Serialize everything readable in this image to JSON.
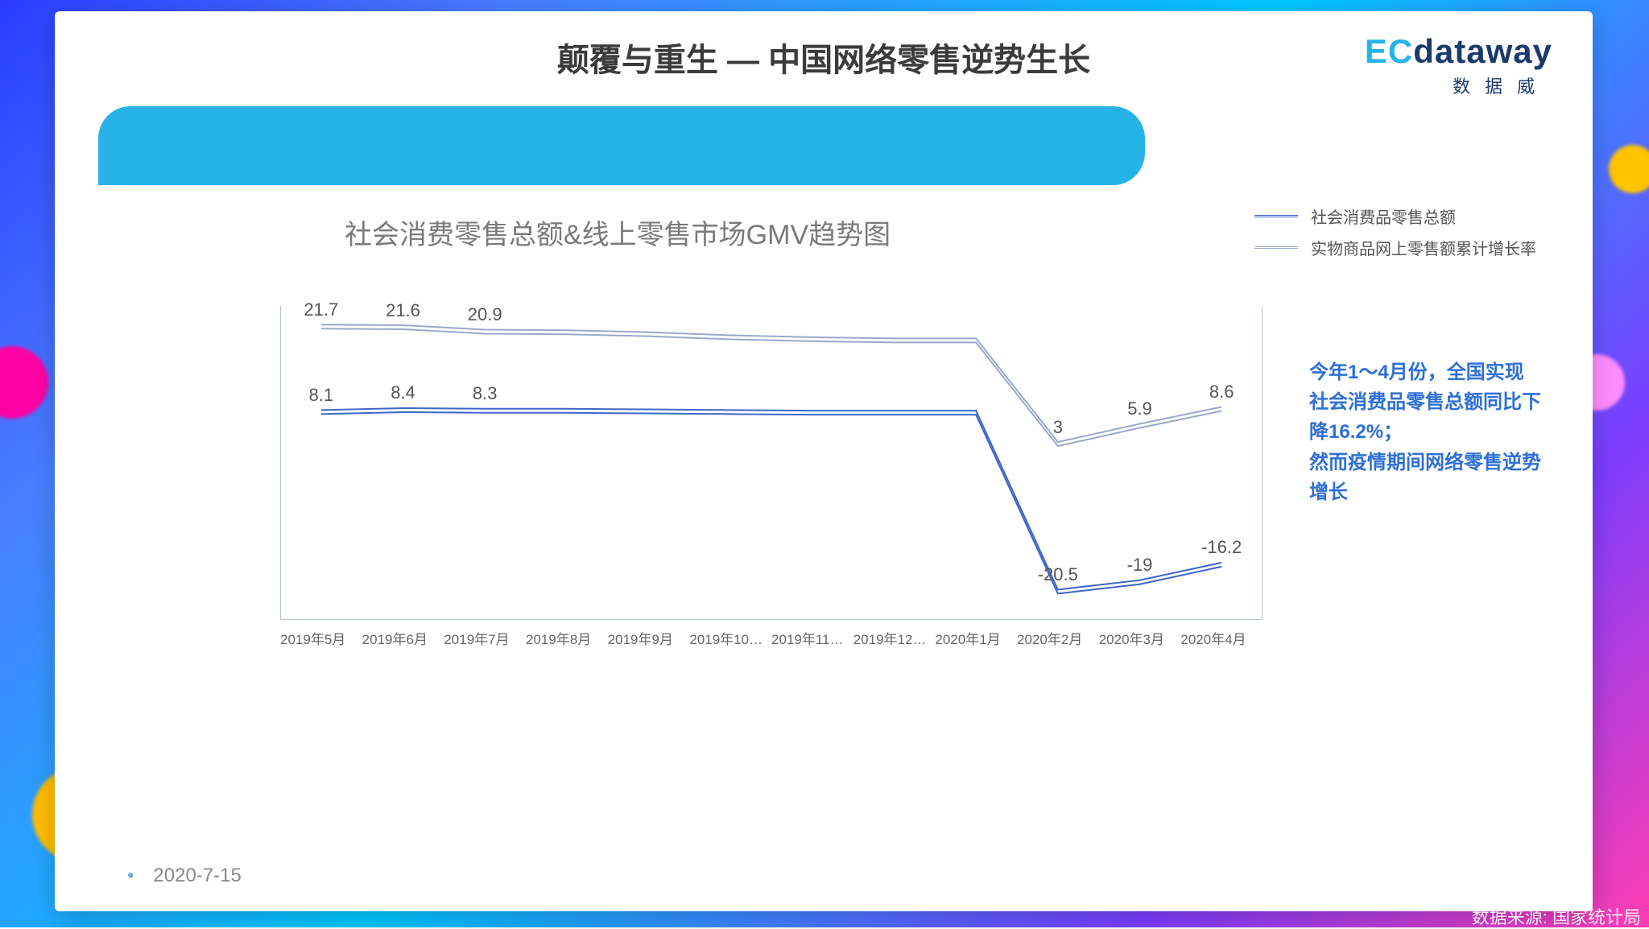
{
  "page_title": "颠覆与重生 — 中国网络零售逆势生长",
  "logo": {
    "left": "EC",
    "right": "dataway",
    "sub": "数据威"
  },
  "chart": {
    "type": "line",
    "title": "社会消费零售总额&线上零售市场GMV趋势图",
    "legend": {
      "series1": {
        "label": "社会消费品零售总额",
        "color": "#3e66c9",
        "border": "3px double #3e66c9"
      },
      "series2": {
        "label": "实物商品网上零售额累计增长率",
        "color": "#9aa8c9",
        "border": "3px double #9aa8c9"
      }
    },
    "categories": [
      "2019年5月",
      "2019年6月",
      "2019年7月",
      "2019年8月",
      "2019年9月",
      "2019年10…",
      "2019年11…",
      "2019年12…",
      "2020年1月",
      "2020年2月",
      "2020年3月",
      "2020年4月"
    ],
    "ylim": [
      -25,
      25
    ],
    "series1_values": [
      8.1,
      8.4,
      8.3,
      8.3,
      8.2,
      8.1,
      8.0,
      8.0,
      8.0,
      -20.5,
      -19,
      -16.2
    ],
    "series1_labels_visible": {
      "0": "8.1",
      "1": "8.4",
      "2": "8.3",
      "9": "-20.5",
      "10": "-19",
      "11": "-16.2"
    },
    "series2_values": [
      21.7,
      21.6,
      20.9,
      20.8,
      20.5,
      20.0,
      19.7,
      19.5,
      19.5,
      3,
      5.9,
      8.6
    ],
    "series2_labels_visible": {
      "0": "21.7",
      "1": "21.6",
      "2": "20.9",
      "9": "3",
      "10": "5.9",
      "11": "8.6"
    },
    "plot_bg": "#ffffff",
    "frame_color": "#b9c4da",
    "label_fontsize": 22,
    "axis_fontsize": 17,
    "line_style": "double",
    "line_width": 2
  },
  "annotation_text": "今年1～4月份，全国实现社会消费品零售总额同比下降16.2%；\n然而疫情期间网络零售逆势增长",
  "date": "2020-7-15",
  "source": "数据来源: 国家统计局",
  "colors": {
    "title": "#3b3b3b",
    "banner": "#27b3e8",
    "annotation": "#2e6fd6",
    "background": "#ffffff"
  }
}
